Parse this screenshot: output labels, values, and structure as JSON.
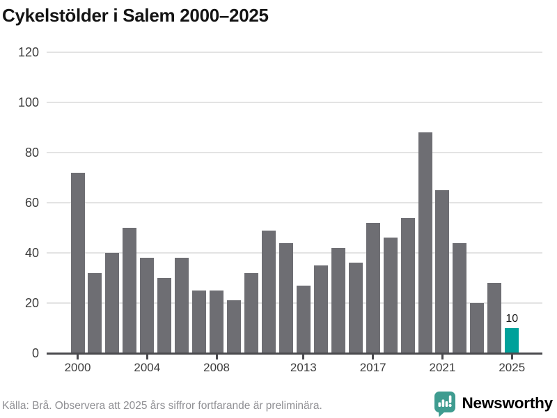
{
  "title": "Cykelstölder i Salem 2000–2025",
  "footer": {
    "source_note": "Källa: Brå. Observera att 2025 års siffror fortfarande är preliminära."
  },
  "branding": {
    "name": "Newsworthy",
    "logo_icon": "bar-chart-speech-bubble-icon",
    "logo_color": "#3f9c90",
    "wordmark_color": "#2e918c"
  },
  "colors": {
    "bar_default": "#6e6e73",
    "bar_highlight": "#00a19a",
    "gridline": "#e3e3e3",
    "axis_line": "#4a4a4e",
    "axis_label": "#3c3c3c",
    "title_text": "#141414",
    "footer_text": "#8f8f93",
    "value_label": "#1a1a1a"
  },
  "chart_data": {
    "type": "bar",
    "title": "Cykelstölder i Salem 2000–2025",
    "x": [
      2000,
      2001,
      2002,
      2003,
      2004,
      2005,
      2006,
      2007,
      2008,
      2009,
      2010,
      2011,
      2012,
      2013,
      2014,
      2015,
      2016,
      2017,
      2018,
      2019,
      2020,
      2021,
      2022,
      2023,
      2024,
      2025
    ],
    "values": [
      72,
      32,
      40,
      50,
      38,
      30,
      38,
      25,
      25,
      21,
      32,
      49,
      44,
      27,
      35,
      42,
      36,
      52,
      46,
      54,
      88,
      65,
      44,
      20,
      28,
      10
    ],
    "highlight_year": 2025,
    "value_labels": [
      {
        "year": 2025,
        "text": "10"
      }
    ],
    "ylim": [
      0,
      120
    ],
    "yticks": [
      0,
      20,
      40,
      60,
      80,
      100,
      120
    ],
    "xtick_years": [
      2000,
      2004,
      2008,
      2013,
      2017,
      2021,
      2025
    ],
    "grid": "horizontal",
    "legend": "none",
    "note": "2025 highlighted as preliminary"
  }
}
